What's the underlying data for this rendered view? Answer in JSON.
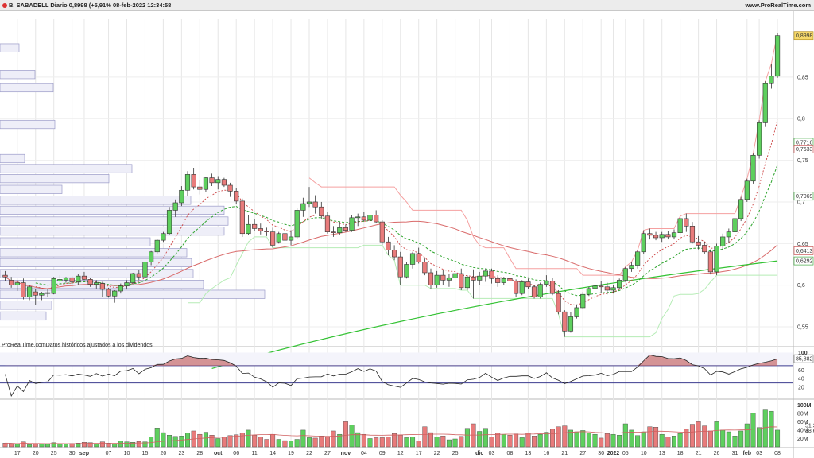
{
  "header": {
    "title": "B. SABADELL Diario 0,8998 (+5,91% 08-feb-2022 12:34:58",
    "site": "www.ProRealTime.com"
  },
  "note": "ProRealTime.comDatos históricos ajustados a los dividendos",
  "colors": {
    "up": "#5ecf5e",
    "down": "#e87b7b",
    "sma200": "#33c233",
    "sma50": "#d96a6a",
    "dashGreen": "#2fa52f",
    "dashRed": "#cc4444",
    "bandRed": "#f5a0a0",
    "bandGreen": "#b5ecb5",
    "rsiLine": "#222222",
    "rsiBand": "#3b3b8f",
    "profileFill": "#eeeef8",
    "profileStroke": "#9a9ac8"
  },
  "chart_data": [
    {
      "type": "candlestick",
      "ylim": [
        0.53,
        0.91
      ],
      "y_ticks": [
        "0,55",
        "0,6",
        "0,65",
        "0,7",
        "0,75",
        "0,8",
        "0,85"
      ],
      "y_tick_values": [
        0.55,
        0.6,
        0.65,
        0.7,
        0.75,
        0.8,
        0.85
      ],
      "price_labels": [
        {
          "text": "0,8998",
          "value": 0.8998,
          "style": "last"
        },
        {
          "text": "0,7716",
          "value": 0.7716,
          "style": "green"
        },
        {
          "text": "0,7633",
          "value": 0.7633,
          "style": "red"
        },
        {
          "text": "0,7069",
          "value": 0.7069,
          "style": "green"
        },
        {
          "text": "0,6413",
          "value": 0.6413,
          "style": "red"
        },
        {
          "text": "0,6292",
          "value": 0.6292,
          "style": "green"
        }
      ],
      "x_labels": [
        {
          "text": "17",
          "bar": 2
        },
        {
          "text": "20",
          "bar": 5
        },
        {
          "text": "25",
          "bar": 8
        },
        {
          "text": "30",
          "bar": 11
        },
        {
          "text": "sep",
          "bar": 13,
          "bold": true
        },
        {
          "text": "07",
          "bar": 17
        },
        {
          "text": "10",
          "bar": 20
        },
        {
          "text": "15",
          "bar": 23
        },
        {
          "text": "20",
          "bar": 26
        },
        {
          "text": "23",
          "bar": 29
        },
        {
          "text": "28",
          "bar": 32
        },
        {
          "text": "oct",
          "bar": 35,
          "bold": true
        },
        {
          "text": "06",
          "bar": 38
        },
        {
          "text": "11",
          "bar": 41
        },
        {
          "text": "14",
          "bar": 44
        },
        {
          "text": "19",
          "bar": 47
        },
        {
          "text": "22",
          "bar": 50
        },
        {
          "text": "27",
          "bar": 53
        },
        {
          "text": "nov",
          "bar": 56,
          "bold": true
        },
        {
          "text": "04",
          "bar": 59
        },
        {
          "text": "09",
          "bar": 62
        },
        {
          "text": "12",
          "bar": 65
        },
        {
          "text": "17",
          "bar": 68
        },
        {
          "text": "22",
          "bar": 71
        },
        {
          "text": "25",
          "bar": 74
        },
        {
          "text": "dic",
          "bar": 78,
          "bold": true
        },
        {
          "text": "03",
          "bar": 80
        },
        {
          "text": "08",
          "bar": 83
        },
        {
          "text": "13",
          "bar": 86
        },
        {
          "text": "16",
          "bar": 89
        },
        {
          "text": "21",
          "bar": 92
        },
        {
          "text": "27",
          "bar": 95
        },
        {
          "text": "30",
          "bar": 98
        },
        {
          "text": "2022",
          "bar": 100,
          "bold": true
        },
        {
          "text": "05",
          "bar": 102
        },
        {
          "text": "10",
          "bar": 105
        },
        {
          "text": "13",
          "bar": 108
        },
        {
          "text": "18",
          "bar": 111
        },
        {
          "text": "21",
          "bar": 114
        },
        {
          "text": "26",
          "bar": 117
        },
        {
          "text": "31",
          "bar": 120
        },
        {
          "text": "feb",
          "bar": 122,
          "bold": true
        },
        {
          "text": "03",
          "bar": 124
        },
        {
          "text": "08",
          "bar": 127
        }
      ],
      "ohlc": [
        [
          0.612,
          0.617,
          0.605,
          0.61
        ],
        [
          0.606,
          0.61,
          0.597,
          0.6
        ],
        [
          0.6,
          0.606,
          0.593,
          0.603
        ],
        [
          0.603,
          0.608,
          0.583,
          0.586
        ],
        [
          0.586,
          0.6,
          0.582,
          0.598
        ],
        [
          0.592,
          0.595,
          0.576,
          0.588
        ],
        [
          0.588,
          0.592,
          0.582,
          0.59
        ],
        [
          0.59,
          0.596,
          0.586,
          0.591
        ],
        [
          0.59,
          0.61,
          0.589,
          0.608
        ],
        [
          0.605,
          0.612,
          0.603,
          0.607
        ],
        [
          0.606,
          0.61,
          0.603,
          0.609
        ],
        [
          0.609,
          0.611,
          0.598,
          0.604
        ],
        [
          0.604,
          0.614,
          0.6,
          0.611
        ],
        [
          0.611,
          0.616,
          0.606,
          0.607
        ],
        [
          0.607,
          0.609,
          0.598,
          0.601
        ],
        [
          0.601,
          0.606,
          0.596,
          0.603
        ],
        [
          0.602,
          0.604,
          0.586,
          0.595
        ],
        [
          0.595,
          0.597,
          0.585,
          0.587
        ],
        [
          0.587,
          0.594,
          0.579,
          0.593
        ],
        [
          0.593,
          0.602,
          0.59,
          0.599
        ],
        [
          0.599,
          0.606,
          0.596,
          0.603
        ],
        [
          0.603,
          0.615,
          0.601,
          0.614
        ],
        [
          0.614,
          0.618,
          0.606,
          0.61
        ],
        [
          0.61,
          0.63,
          0.609,
          0.628
        ],
        [
          0.628,
          0.641,
          0.624,
          0.64
        ],
        [
          0.64,
          0.656,
          0.638,
          0.654
        ],
        [
          0.654,
          0.664,
          0.652,
          0.662
        ],
        [
          0.662,
          0.694,
          0.66,
          0.69
        ],
        [
          0.69,
          0.703,
          0.682,
          0.699
        ],
        [
          0.699,
          0.719,
          0.695,
          0.714
        ],
        [
          0.714,
          0.737,
          0.707,
          0.733
        ],
        [
          0.733,
          0.741,
          0.715,
          0.718
        ],
        [
          0.718,
          0.726,
          0.709,
          0.715
        ],
        [
          0.715,
          0.73,
          0.712,
          0.729
        ],
        [
          0.729,
          0.734,
          0.719,
          0.723
        ],
        [
          0.723,
          0.731,
          0.715,
          0.727
        ],
        [
          0.727,
          0.729,
          0.718,
          0.72
        ],
        [
          0.72,
          0.723,
          0.706,
          0.713
        ],
        [
          0.713,
          0.717,
          0.698,
          0.701
        ],
        [
          0.701,
          0.704,
          0.658,
          0.662
        ],
        [
          0.662,
          0.684,
          0.66,
          0.673
        ],
        [
          0.673,
          0.679,
          0.665,
          0.668
        ],
        [
          0.668,
          0.674,
          0.661,
          0.665
        ],
        [
          0.665,
          0.669,
          0.659,
          0.664
        ],
        [
          0.664,
          0.669,
          0.645,
          0.648
        ],
        [
          0.652,
          0.664,
          0.65,
          0.662
        ],
        [
          0.662,
          0.672,
          0.65,
          0.654
        ],
        [
          0.654,
          0.666,
          0.648,
          0.658
        ],
        [
          0.658,
          0.693,
          0.656,
          0.69
        ],
        [
          0.69,
          0.705,
          0.682,
          0.698
        ],
        [
          0.698,
          0.718,
          0.694,
          0.7
        ],
        [
          0.7,
          0.708,
          0.686,
          0.694
        ],
        [
          0.694,
          0.7,
          0.68,
          0.683
        ],
        [
          0.683,
          0.688,
          0.662,
          0.664
        ],
        [
          0.664,
          0.671,
          0.658,
          0.663
        ],
        [
          0.663,
          0.676,
          0.66,
          0.669
        ],
        [
          0.669,
          0.673,
          0.664,
          0.666
        ],
        [
          0.666,
          0.684,
          0.664,
          0.681
        ],
        [
          0.681,
          0.686,
          0.671,
          0.682
        ],
        [
          0.682,
          0.688,
          0.677,
          0.678
        ],
        [
          0.678,
          0.69,
          0.672,
          0.684
        ],
        [
          0.684,
          0.69,
          0.675,
          0.676
        ],
        [
          0.676,
          0.678,
          0.648,
          0.652
        ],
        [
          0.652,
          0.658,
          0.636,
          0.642
        ],
        [
          0.642,
          0.648,
          0.63,
          0.634
        ],
        [
          0.634,
          0.64,
          0.6,
          0.61
        ],
        [
          0.61,
          0.628,
          0.608,
          0.625
        ],
        [
          0.625,
          0.64,
          0.62,
          0.638
        ],
        [
          0.638,
          0.645,
          0.626,
          0.628
        ],
        [
          0.628,
          0.632,
          0.612,
          0.615
        ],
        [
          0.615,
          0.62,
          0.596,
          0.6
        ],
        [
          0.6,
          0.617,
          0.597,
          0.612
        ],
        [
          0.612,
          0.618,
          0.6,
          0.606
        ],
        [
          0.606,
          0.614,
          0.598,
          0.609
        ],
        [
          0.609,
          0.617,
          0.605,
          0.614
        ],
        [
          0.614,
          0.62,
          0.594,
          0.597
        ],
        [
          0.597,
          0.612,
          0.594,
          0.61
        ],
        [
          0.61,
          0.619,
          0.584,
          0.606
        ],
        [
          0.606,
          0.616,
          0.6,
          0.611
        ],
        [
          0.611,
          0.62,
          0.604,
          0.617
        ],
        [
          0.617,
          0.62,
          0.602,
          0.608
        ],
        [
          0.608,
          0.612,
          0.598,
          0.603
        ],
        [
          0.603,
          0.61,
          0.6,
          0.608
        ],
        [
          0.608,
          0.612,
          0.602,
          0.605
        ],
        [
          0.605,
          0.607,
          0.586,
          0.59
        ],
        [
          0.59,
          0.606,
          0.588,
          0.604
        ],
        [
          0.604,
          0.608,
          0.595,
          0.598
        ],
        [
          0.598,
          0.6,
          0.584,
          0.586
        ],
        [
          0.586,
          0.603,
          0.584,
          0.601
        ],
        [
          0.601,
          0.612,
          0.598,
          0.605
        ],
        [
          0.605,
          0.609,
          0.588,
          0.59
        ],
        [
          0.59,
          0.594,
          0.565,
          0.568
        ],
        [
          0.568,
          0.57,
          0.538,
          0.545
        ],
        [
          0.545,
          0.568,
          0.543,
          0.562
        ],
        [
          0.562,
          0.577,
          0.56,
          0.573
        ],
        [
          0.573,
          0.592,
          0.571,
          0.589
        ],
        [
          0.589,
          0.598,
          0.587,
          0.596
        ],
        [
          0.596,
          0.604,
          0.59,
          0.599
        ],
        [
          0.599,
          0.605,
          0.591,
          0.598
        ],
        [
          0.598,
          0.603,
          0.589,
          0.594
        ],
        [
          0.594,
          0.6,
          0.59,
          0.597
        ],
        [
          0.597,
          0.608,
          0.595,
          0.606
        ],
        [
          0.606,
          0.622,
          0.604,
          0.62
        ],
        [
          0.62,
          0.628,
          0.616,
          0.624
        ],
        [
          0.624,
          0.642,
          0.62,
          0.64
        ],
        [
          0.64,
          0.666,
          0.637,
          0.662
        ],
        [
          0.662,
          0.668,
          0.655,
          0.66
        ],
        [
          0.66,
          0.664,
          0.654,
          0.657
        ],
        [
          0.657,
          0.664,
          0.652,
          0.661
        ],
        [
          0.661,
          0.665,
          0.655,
          0.658
        ],
        [
          0.658,
          0.667,
          0.655,
          0.663
        ],
        [
          0.663,
          0.683,
          0.66,
          0.68
        ],
        [
          0.68,
          0.686,
          0.664,
          0.671
        ],
        [
          0.671,
          0.676,
          0.65,
          0.652
        ],
        [
          0.652,
          0.659,
          0.643,
          0.648
        ],
        [
          0.648,
          0.652,
          0.637,
          0.64
        ],
        [
          0.64,
          0.643,
          0.613,
          0.616
        ],
        [
          0.616,
          0.65,
          0.612,
          0.647
        ],
        [
          0.647,
          0.662,
          0.642,
          0.658
        ],
        [
          0.658,
          0.668,
          0.651,
          0.664
        ],
        [
          0.664,
          0.684,
          0.66,
          0.68
        ],
        [
          0.68,
          0.706,
          0.677,
          0.703
        ],
        [
          0.703,
          0.728,
          0.7,
          0.725
        ],
        [
          0.725,
          0.758,
          0.722,
          0.756
        ],
        [
          0.756,
          0.798,
          0.752,
          0.795
        ],
        [
          0.795,
          0.845,
          0.79,
          0.842
        ],
        [
          0.842,
          0.866,
          0.836,
          0.851
        ],
        [
          0.851,
          0.903,
          0.849,
          0.8998
        ]
      ],
      "indicators": {
        "sma200": [
          0.5,
          0.6292
        ],
        "sma50_start": 0.588,
        "ema20_green_dashed_end": 0.7069,
        "ema_red_dashed_end": 0.7633,
        "band_green_end": 0.7716
      }
    },
    {
      "type": "line",
      "name_shown": "85,882",
      "y_ticks": [
        "100",
        "80",
        "60",
        "40",
        "20"
      ],
      "y_tick_values": [
        100,
        80,
        60,
        40,
        20
      ],
      "levels": [
        70,
        30
      ],
      "last": 85.882
    },
    {
      "type": "bar",
      "y_ticks": [
        "100M",
        "80M",
        "60M",
        "40M",
        "20M"
      ],
      "y_tick_values": [
        100,
        80,
        60,
        40,
        20
      ],
      "unit": "M",
      "value_labels": [
        {
          "text": "51,3M",
          "value": 51.3,
          "style": "red"
        },
        {
          "text": "38,6M",
          "value": 38.6,
          "style": "green"
        }
      ],
      "volumes": [
        9,
        8,
        6,
        12,
        5,
        8,
        7,
        6,
        10,
        6,
        7,
        8,
        9,
        11,
        10,
        8,
        12,
        9,
        7,
        14,
        12,
        11,
        13,
        12,
        24,
        45,
        34,
        28,
        25,
        26,
        33,
        38,
        30,
        35,
        28,
        20,
        24,
        27,
        29,
        33,
        40,
        28,
        24,
        18,
        30,
        18,
        15,
        14,
        18,
        40,
        22,
        21,
        26,
        24,
        38,
        30,
        60,
        52,
        34,
        30,
        20,
        22,
        22,
        24,
        32,
        28,
        22,
        24,
        14,
        48,
        34,
        24,
        26,
        17,
        19,
        25,
        44,
        55,
        37,
        44,
        24,
        33,
        30,
        28,
        31,
        22,
        33,
        26,
        30,
        35,
        42,
        48,
        50,
        40,
        36,
        39,
        33,
        30,
        21,
        32,
        30,
        28,
        55,
        40,
        27,
        36,
        48,
        47,
        30,
        24,
        26,
        32,
        42,
        54,
        60,
        50,
        38,
        60,
        40,
        36,
        26,
        38,
        55,
        80,
        46,
        88,
        85,
        40
      ],
      "volume_ma_end": 51.3
    }
  ]
}
